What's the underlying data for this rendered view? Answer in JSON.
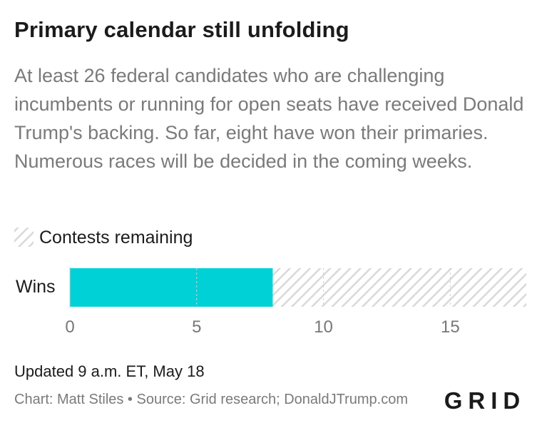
{
  "header": {
    "title": "Primary calendar still unfolding",
    "subtitle": "At least 26 federal candidates who are challenging incumbents or running for open seats have received Donald Trump's backing. So far, eight have won their primaries. Numerous races will be decided in the coming weeks."
  },
  "footer": {
    "updated": "Updated 9 a.m. ET, May 18",
    "credits": "Chart: Matt Stiles • Source: Grid research; DonaldJTrump.com",
    "logo_text": "GRID"
  },
  "colors": {
    "wins": "#00d1d6",
    "remaining_hatch": "#d9d9d9",
    "grid": "#cfcfcf",
    "text": "#1b1b1b",
    "muted": "#777777"
  },
  "chart_data": {
    "type": "bar",
    "orientation": "horizontal",
    "stacked": true,
    "categories": [
      "Wins"
    ],
    "series": [
      {
        "name": "",
        "values": [
          8
        ],
        "color": "#00d1d6",
        "pattern": "solid"
      },
      {
        "name": "Contests remaining",
        "values": [
          10
        ],
        "color": "#d9d9d9",
        "pattern": "hatched"
      }
    ],
    "xlim": [
      0,
      18
    ],
    "xticks": [
      0,
      5,
      10,
      15
    ],
    "legend": {
      "position": "top-left",
      "entries": [
        "Contests remaining"
      ]
    },
    "grid": true
  }
}
